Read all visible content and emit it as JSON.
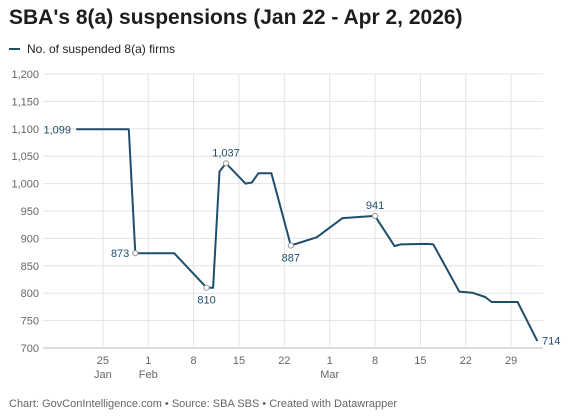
{
  "title": "SBA's 8(a) suspensions (Jan 22 - Apr 2, 2026)",
  "legend": {
    "label": "No. of suspended 8(a) firms"
  },
  "footer": "Chart: GovConIntelligence.com • Source: SBA SBS • Created with Datawrapper",
  "colors": {
    "line": "#1f4e6d",
    "grid": "#e3e3e3",
    "axis_text": "#666666"
  },
  "chart_data": {
    "type": "line",
    "title": "SBA's 8(a) suspensions (Jan 22 - Apr 2, 2026)",
    "xlabel": "",
    "ylabel": "",
    "ylim": [
      700,
      1200
    ],
    "yticks": [
      700,
      750,
      800,
      850,
      900,
      950,
      "1,000",
      "1,050",
      "1,100",
      "1,150",
      "1,200"
    ],
    "xlim": [
      "2026-01-21",
      "2026-04-02"
    ],
    "grid": true,
    "legend_position": "top-left",
    "x_ticks": [
      {
        "date": "2026-01-25",
        "label": "25",
        "month": "Jan"
      },
      {
        "date": "2026-02-01",
        "label": "1",
        "month": "Feb"
      },
      {
        "date": "2026-02-08",
        "label": "8",
        "month": ""
      },
      {
        "date": "2026-02-15",
        "label": "15",
        "month": ""
      },
      {
        "date": "2026-02-22",
        "label": "22",
        "month": ""
      },
      {
        "date": "2026-03-01",
        "label": "1",
        "month": "Mar"
      },
      {
        "date": "2026-03-08",
        "label": "8",
        "month": ""
      },
      {
        "date": "2026-03-15",
        "label": "15",
        "month": ""
      },
      {
        "date": "2026-03-22",
        "label": "22",
        "month": ""
      },
      {
        "date": "2026-03-29",
        "label": "29",
        "month": ""
      }
    ],
    "series": [
      {
        "name": "No. of suspended 8(a) firms",
        "points": [
          {
            "x": "2026-01-21",
            "y": 1099,
            "label": "1,099",
            "label_pos": "left"
          },
          {
            "x": "2026-01-29",
            "y": 1099
          },
          {
            "x": "2026-01-30",
            "y": 873,
            "label": "873",
            "label_pos": "left",
            "marker": true
          },
          {
            "x": "2026-02-05",
            "y": 873
          },
          {
            "x": "2026-02-10",
            "y": 810,
            "label": "810",
            "label_pos": "below",
            "marker": true
          },
          {
            "x": "2026-02-11",
            "y": 810
          },
          {
            "x": "2026-02-12",
            "y": 1022
          },
          {
            "x": "2026-02-13",
            "y": 1037,
            "label": "1,037",
            "label_pos": "above",
            "marker": true
          },
          {
            "x": "2026-02-16",
            "y": 1000
          },
          {
            "x": "2026-02-17",
            "y": 1002
          },
          {
            "x": "2026-02-18",
            "y": 1019
          },
          {
            "x": "2026-02-20",
            "y": 1019
          },
          {
            "x": "2026-02-23",
            "y": 887,
            "label": "887",
            "label_pos": "below",
            "marker": true
          },
          {
            "x": "2026-02-27",
            "y": 902
          },
          {
            "x": "2026-03-03",
            "y": 937
          },
          {
            "x": "2026-03-08",
            "y": 941,
            "label": "941",
            "label_pos": "above",
            "marker": true
          },
          {
            "x": "2026-03-11",
            "y": 886
          },
          {
            "x": "2026-03-12",
            "y": 889
          },
          {
            "x": "2026-03-16",
            "y": 890
          },
          {
            "x": "2026-03-17",
            "y": 889
          },
          {
            "x": "2026-03-21",
            "y": 803
          },
          {
            "x": "2026-03-23",
            "y": 801
          },
          {
            "x": "2026-03-25",
            "y": 793
          },
          {
            "x": "2026-03-26",
            "y": 784
          },
          {
            "x": "2026-03-30",
            "y": 784
          },
          {
            "x": "2026-04-02",
            "y": 714,
            "label": "714",
            "label_pos": "right"
          }
        ]
      }
    ]
  }
}
